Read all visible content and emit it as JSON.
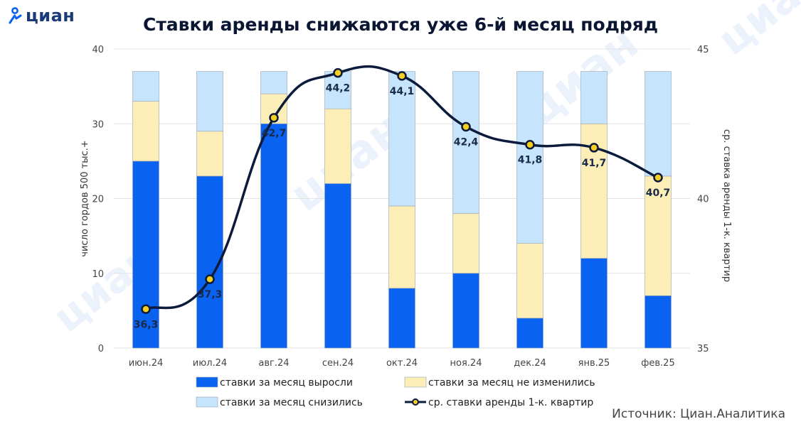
{
  "brand": {
    "logo_text": "циан",
    "watermark": "циан"
  },
  "source": "Источник: Циан.Аналитика",
  "colors": {
    "grew": "#0a62f0",
    "unchanged": "#fdeeb8",
    "declined": "#c6e4fb",
    "line": "#0c1a3c",
    "marker": "#f5cf1f",
    "grid": "#e3e3e3",
    "brand": "#1a3a7a"
  },
  "chart_data": {
    "type": "bar",
    "stacked": true,
    "title": "Ставки аренды снижаются уже 6-й месяц подряд",
    "categories": [
      "июн.24",
      "июл.24",
      "авг.24",
      "сен.24",
      "окт.24",
      "ноя.24",
      "дек.24",
      "янв.25",
      "фев.25"
    ],
    "series": [
      {
        "name": "ставки за месяц выросли",
        "key": "grew",
        "axis": "left",
        "values": [
          25,
          23,
          30,
          22,
          8,
          10,
          4,
          12,
          7
        ]
      },
      {
        "name": "ставки за месяц не изменились",
        "key": "unchanged",
        "axis": "left",
        "values": [
          8,
          6,
          4,
          10,
          11,
          8,
          10,
          18,
          16
        ]
      },
      {
        "name": "ставки за месяц снизились",
        "key": "declined",
        "axis": "left",
        "values": [
          4,
          8,
          3,
          5,
          18,
          19,
          23,
          7,
          14
        ]
      },
      {
        "name": "ср. ставки аренды 1-к. квартир",
        "key": "line",
        "type": "line",
        "axis": "right",
        "values": [
          36.3,
          37.3,
          42.7,
          44.2,
          44.1,
          42.4,
          41.8,
          41.7,
          40.7
        ],
        "labels": [
          "36,3",
          "37,3",
          "42,7",
          "44,2",
          "44,1",
          "42,4",
          "41,8",
          "41,7",
          "40,7"
        ]
      }
    ],
    "ylabel": "число гордов 500 тыс.+",
    "y2label": "ср. ставка аренды 1-к. квартир",
    "ylim": [
      0,
      40
    ],
    "yticks": [
      0,
      10,
      20,
      30,
      40
    ],
    "y2lim": [
      35,
      45
    ],
    "y2ticks": [
      35,
      40,
      45
    ],
    "grid": true,
    "legend_position": "bottom",
    "legend": [
      "ставки за месяц выросли",
      "ставки за месяц не изменились",
      "ставки за месяц снизились",
      "ср. ставки аренды 1-к. квартир"
    ]
  }
}
